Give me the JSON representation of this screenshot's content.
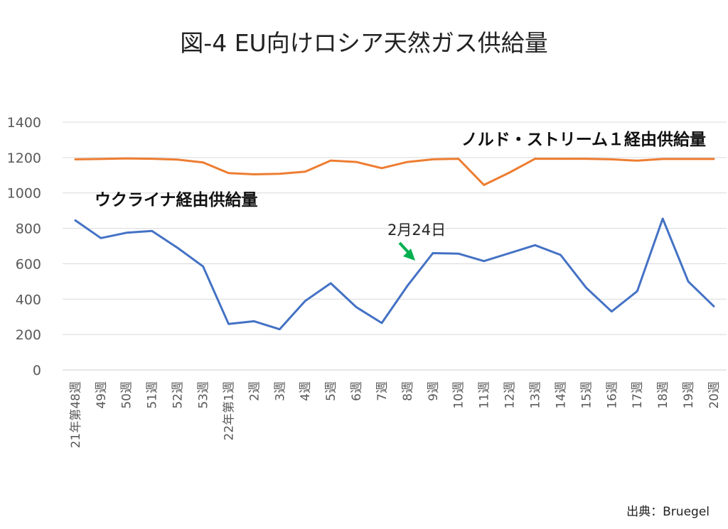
{
  "chart_data": {
    "type": "line",
    "title": "図-4 EU向けロシア天然ガス供給量",
    "source": "出典：Bruegel",
    "xlabel": "",
    "ylabel": "",
    "ylim": [
      0,
      1400
    ],
    "yticks": [
      0,
      200,
      400,
      600,
      800,
      1000,
      1200,
      1400
    ],
    "grid": true,
    "categories": [
      "21年第48週",
      "49週",
      "50週",
      "51週",
      "52週",
      "53週",
      "22年第1週",
      "2週",
      "3週",
      "4週",
      "5週",
      "6週",
      "7週",
      "8週",
      "9週",
      "10週",
      "11週",
      "12週",
      "13週",
      "14週",
      "15週",
      "16週",
      "17週",
      "18週",
      "19週",
      "20週"
    ],
    "series": [
      {
        "name": "ノルド・ストリーム１経由供給量",
        "color": "#ED7D31",
        "values": [
          1190,
          1192,
          1195,
          1193,
          1188,
          1172,
          1112,
          1105,
          1108,
          1120,
          1183,
          1175,
          1140,
          1175,
          1190,
          1193,
          1045,
          1115,
          1193,
          1193,
          1193,
          1190,
          1182,
          1192,
          1192,
          1192
        ]
      },
      {
        "name": "ウクライナ経由供給量",
        "color": "#4472C4",
        "values": [
          845,
          745,
          775,
          785,
          690,
          585,
          260,
          275,
          230,
          390,
          490,
          355,
          265,
          475,
          660,
          657,
          615,
          660,
          705,
          650,
          465,
          330,
          445,
          855,
          500,
          360
        ]
      }
    ],
    "annotations": [
      {
        "text": "2月24日",
        "arrow_color": "#00B050"
      }
    ]
  }
}
